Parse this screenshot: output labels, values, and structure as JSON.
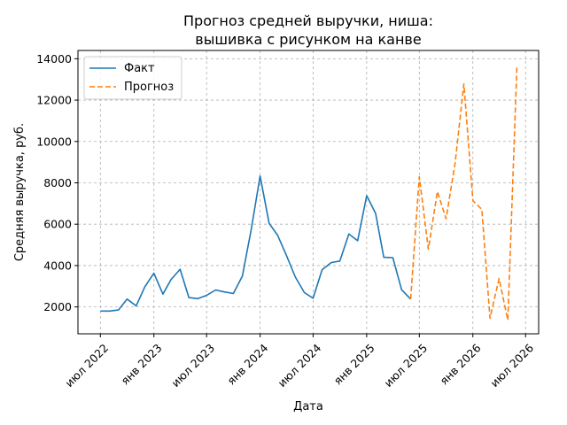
{
  "chart_data": {
    "type": "line",
    "title_line1": "Прогноз средней выручки, ниша:",
    "title_line2": "вышивка с рисунком на канве",
    "xlabel": "Дата",
    "ylabel": "Средняя выручка, руб.",
    "x_ticks": [
      "июл 2022",
      "янв 2023",
      "июл 2023",
      "янв 2024",
      "июл 2024",
      "янв 2025",
      "июл 2025",
      "янв 2026",
      "июл 2026"
    ],
    "y_ticks": [
      2000,
      4000,
      6000,
      8000,
      10000,
      12000,
      14000
    ],
    "ylim": [
      700,
      14400
    ],
    "xlim": [
      "2022-04-15",
      "2026-08-15"
    ],
    "grid": true,
    "legend_position": "top-left",
    "series": [
      {
        "name": "Факт",
        "color": "#1f77b4",
        "style": "solid",
        "points": [
          [
            "2022-07-01",
            1800
          ],
          [
            "2022-08-01",
            1800
          ],
          [
            "2022-09-01",
            1850
          ],
          [
            "2022-10-01",
            2380
          ],
          [
            "2022-11-01",
            2050
          ],
          [
            "2022-12-01",
            2980
          ],
          [
            "2023-01-01",
            3630
          ],
          [
            "2023-02-01",
            2620
          ],
          [
            "2023-03-01",
            3330
          ],
          [
            "2023-04-01",
            3820
          ],
          [
            "2023-05-01",
            2450
          ],
          [
            "2023-06-01",
            2400
          ],
          [
            "2023-07-01",
            2560
          ],
          [
            "2023-08-01",
            2820
          ],
          [
            "2023-09-01",
            2720
          ],
          [
            "2023-10-01",
            2650
          ],
          [
            "2023-11-01",
            3490
          ],
          [
            "2023-12-01",
            5730
          ],
          [
            "2024-01-01",
            8330
          ],
          [
            "2024-02-01",
            6040
          ],
          [
            "2024-03-01",
            5470
          ],
          [
            "2024-04-01",
            4470
          ],
          [
            "2024-05-01",
            3440
          ],
          [
            "2024-06-01",
            2690
          ],
          [
            "2024-07-01",
            2420
          ],
          [
            "2024-08-01",
            3800
          ],
          [
            "2024-09-01",
            4140
          ],
          [
            "2024-10-01",
            4220
          ],
          [
            "2024-11-01",
            5530
          ],
          [
            "2024-12-01",
            5200
          ],
          [
            "2025-01-01",
            7380
          ],
          [
            "2025-02-01",
            6520
          ],
          [
            "2025-03-01",
            4400
          ],
          [
            "2025-04-01",
            4380
          ],
          [
            "2025-05-01",
            2830
          ],
          [
            "2025-06-01",
            2380
          ]
        ]
      },
      {
        "name": "Прогноз",
        "color": "#ff7f0e",
        "style": "dashed",
        "points": [
          [
            "2025-06-01",
            2380
          ],
          [
            "2025-07-01",
            8290
          ],
          [
            "2025-08-01",
            4790
          ],
          [
            "2025-09-01",
            7580
          ],
          [
            "2025-10-01",
            6260
          ],
          [
            "2025-11-01",
            8960
          ],
          [
            "2025-12-01",
            12780
          ],
          [
            "2026-01-01",
            7140
          ],
          [
            "2026-02-01",
            6710
          ],
          [
            "2026-03-01",
            1450
          ],
          [
            "2026-04-01",
            3370
          ],
          [
            "2026-05-01",
            1360
          ],
          [
            "2026-06-01",
            13580
          ]
        ]
      }
    ]
  }
}
